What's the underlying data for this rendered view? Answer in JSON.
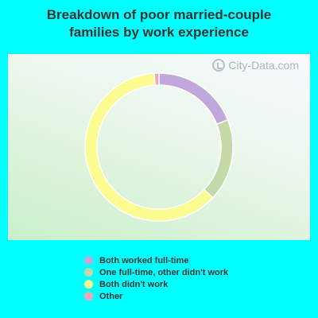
{
  "title_lines": [
    "Breakdown of poor married-couple",
    "families by work experience"
  ],
  "watermark": "City-Data.com",
  "chart_data": {
    "type": "pie",
    "donut": true,
    "title": "Breakdown of poor married-couple families by work experience",
    "categories": [
      "Both worked full-time",
      "One full-time, other didn't work",
      "Both didn't work",
      "Other"
    ],
    "values": [
      19,
      18,
      62,
      1
    ],
    "colors": [
      "#c0a8dc",
      "#c4d8a8",
      "#fcfc90",
      "#f0a8b8"
    ],
    "legend_position": "bottom"
  }
}
